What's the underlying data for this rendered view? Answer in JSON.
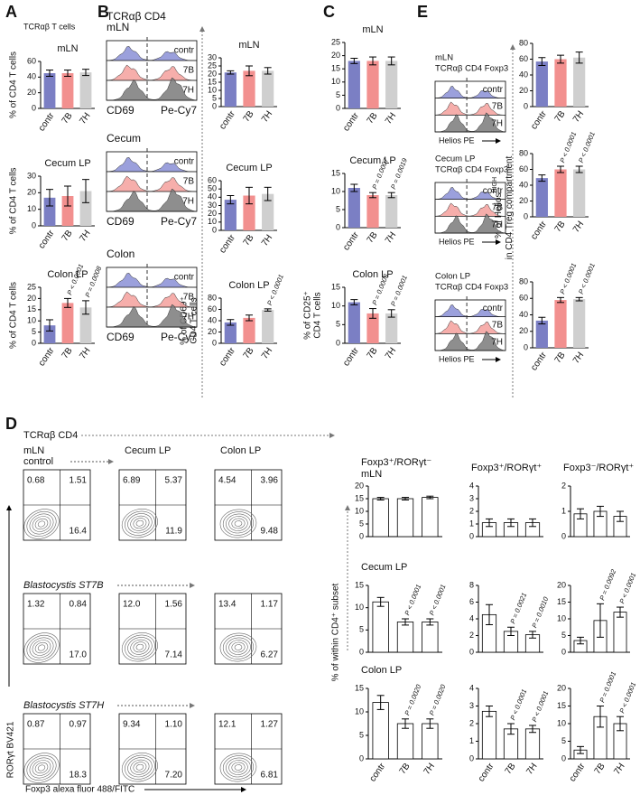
{
  "figure": {
    "panel_labels": [
      "A",
      "B",
      "C",
      "D",
      "E"
    ],
    "a_header": "TCRαβ T cells",
    "d_ylabel": "% of within CD4⁺ subset",
    "e_ylabel": {
      "text": "% of Helios",
      "sup": "HIGH",
      "line2": "in CD4 Treg compartment"
    }
  },
  "histograms": [
    {
      "title": [
        "TCRαβ CD4",
        "mLN"
      ],
      "groups": [
        "contr",
        "7B",
        "7H"
      ],
      "xlabel": [
        "CD69",
        "Pe-Cy7"
      ]
    },
    {
      "title": [
        "Cecum"
      ],
      "groups": [
        "contr",
        "7B",
        "7H"
      ],
      "xlabel": [
        "CD69",
        "Pe-Cy7"
      ]
    },
    {
      "title": [
        "Colon"
      ],
      "groups": [
        "contr",
        "7B",
        "7H"
      ],
      "xlabel": [
        "CD69",
        "Pe-Cy7"
      ]
    },
    {
      "title": [
        "mLN",
        "TCRαβ CD4 Foxp3"
      ],
      "groups": [
        "contr",
        "7B",
        "7H"
      ],
      "xlabel": [
        "Helios PE"
      ]
    },
    {
      "title": [
        "Cecum LP",
        "TCRαβ CD4 Foxp3"
      ],
      "groups": [
        "contr",
        "7B",
        "7H"
      ],
      "xlabel": [
        "Helios PE"
      ]
    },
    {
      "title": [
        "Colon LP",
        "TCRαβ CD4 Foxp3"
      ],
      "groups": [
        "contr",
        "7B",
        "7H"
      ],
      "xlabel": [
        "Helios PE"
      ]
    }
  ],
  "flow": {
    "header": "TCRαβ CD4",
    "tissue": "mLN",
    "columns": [
      "Cecum LP",
      "Colon LP"
    ],
    "rows": [
      "control",
      "Blastocystis ST7B",
      "Blastocystis ST7H"
    ],
    "ylabel": "RORγt BV421",
    "xlabel": "Foxp3 alexa fluor 488/FITC",
    "quadrants": [
      [
        [
          "0.68",
          "1.51",
          "16.4"
        ],
        [
          "6.89",
          "5.37",
          "11.9"
        ],
        [
          "4.54",
          "3.96",
          "9.48"
        ]
      ],
      [
        [
          "1.32",
          "0.84",
          "17.0"
        ],
        [
          "12.0",
          "1.56",
          "7.14"
        ],
        [
          "13.4",
          "1.17",
          "6.27"
        ]
      ],
      [
        [
          "0.87",
          "0.97",
          "18.3"
        ],
        [
          "9.34",
          "1.10",
          "7.20"
        ],
        [
          "12.1",
          "1.27",
          "6.81"
        ]
      ]
    ]
  },
  "chart_data": [
    {
      "type": "bar",
      "title": "mLN",
      "categories": [
        "contr",
        "7B",
        "7H"
      ],
      "values": [
        45,
        45,
        46
      ],
      "errors": [
        4,
        4,
        4
      ],
      "colors": [
        "#7b7fc4",
        "#f2908f",
        "#cfcfcf"
      ],
      "ylim": [
        0,
        60
      ],
      "yticks": [
        0,
        20,
        40,
        60
      ],
      "ylabel": [
        "% of CD4 T cells"
      ]
    },
    {
      "type": "bar",
      "title": "Cecum LP",
      "categories": [
        "contr",
        "7B",
        "7H"
      ],
      "values": [
        17,
        18,
        21
      ],
      "errors": [
        5,
        6,
        7
      ],
      "colors": [
        "#7b7fc4",
        "#f2908f",
        "#cfcfcf"
      ],
      "ylim": [
        0,
        30
      ],
      "yticks": [
        0,
        10,
        20,
        30
      ],
      "ylabel": [
        "% of CD4 T cells"
      ]
    },
    {
      "type": "bar",
      "title": "Colon LP",
      "categories": [
        "contr",
        "7B",
        "7H"
      ],
      "values": [
        8,
        18,
        16
      ],
      "errors": [
        2.5,
        2,
        3
      ],
      "colors": [
        "#7b7fc4",
        "#f2908f",
        "#cfcfcf"
      ],
      "ylim": [
        0,
        25
      ],
      "yticks": [
        0,
        5,
        10,
        15,
        20,
        25
      ],
      "ylabel": [
        "% of CD4 T cells"
      ],
      "annotations": [
        null,
        "P < 0.0001",
        "P = 0.0008"
      ]
    },
    {
      "type": "bar",
      "title": "mLN",
      "categories": [
        "contr",
        "7B",
        "7H"
      ],
      "values": [
        21,
        22,
        22
      ],
      "errors": [
        1,
        3,
        2
      ],
      "colors": [
        "#7b7fc4",
        "#f2908f",
        "#cfcfcf"
      ],
      "ylim": [
        0,
        30
      ],
      "yticks": [
        0,
        5,
        10,
        15,
        20,
        25,
        30
      ]
    },
    {
      "type": "bar",
      "title": "Cecum LP",
      "categories": [
        "contr",
        "7B",
        "7H"
      ],
      "values": [
        37,
        42,
        44
      ],
      "errors": [
        5,
        10,
        8
      ],
      "colors": [
        "#7b7fc4",
        "#f2908f",
        "#cfcfcf"
      ],
      "ylim": [
        0,
        60
      ],
      "yticks": [
        0,
        10,
        20,
        30,
        40,
        50,
        60
      ]
    },
    {
      "type": "bar",
      "title": "Colon LP",
      "categories": [
        "contr",
        "7B",
        "7H"
      ],
      "values": [
        37,
        45,
        59
      ],
      "errors": [
        5,
        5,
        2
      ],
      "colors": [
        "#7b7fc4",
        "#f2908f",
        "#cfcfcf"
      ],
      "ylim": [
        0,
        80
      ],
      "yticks": [
        0,
        20,
        40,
        60,
        80
      ],
      "ylabel": [
        "% of CD69⁺",
        "CD4 T cells"
      ],
      "annotations": [
        null,
        null,
        "P < 0.0001"
      ]
    },
    {
      "type": "bar",
      "title": "mLN",
      "categories": [
        "contr",
        "7B",
        "7H"
      ],
      "values": [
        18,
        18,
        18
      ],
      "errors": [
        1,
        1.5,
        1.5
      ],
      "colors": [
        "#7b7fc4",
        "#f2908f",
        "#cfcfcf"
      ],
      "ylim": [
        0,
        25
      ],
      "yticks": [
        0,
        5,
        10,
        15,
        20,
        25
      ]
    },
    {
      "type": "bar",
      "title": "Cecum LP",
      "categories": [
        "contr",
        "7B",
        "7H"
      ],
      "values": [
        11,
        9,
        9
      ],
      "errors": [
        1,
        0.7,
        0.7
      ],
      "colors": [
        "#7b7fc4",
        "#f2908f",
        "#cfcfcf"
      ],
      "ylim": [
        0,
        15
      ],
      "yticks": [
        0,
        5,
        10,
        15
      ],
      "annotations": [
        null,
        "P = 0.0007",
        "P = 0.0019"
      ]
    },
    {
      "type": "bar",
      "title": "Colon LP",
      "categories": [
        "contr",
        "7B",
        "7H"
      ],
      "values": [
        11,
        8,
        8
      ],
      "errors": [
        0.7,
        1.3,
        1
      ],
      "colors": [
        "#7b7fc4",
        "#f2908f",
        "#cfcfcf"
      ],
      "ylim": [
        0,
        15
      ],
      "yticks": [
        0,
        5,
        10,
        15
      ],
      "ylabel": [
        "% of CD25⁺",
        "CD4 T cells"
      ],
      "annotations": [
        null,
        "P = 0.0003",
        "P = 0.0001"
      ]
    },
    {
      "type": "bar",
      "categories": [
        "contr",
        "7B",
        "7H"
      ],
      "values": [
        57,
        60,
        62
      ],
      "errors": [
        5,
        5,
        7
      ],
      "colors": [
        "#7b7fc4",
        "#f2908f",
        "#cfcfcf"
      ],
      "ylim": [
        0,
        80
      ],
      "yticks": [
        0,
        20,
        40,
        60,
        80
      ]
    },
    {
      "type": "bar",
      "categories": [
        "contr",
        "7B",
        "7H"
      ],
      "values": [
        49,
        60,
        60
      ],
      "errors": [
        4,
        4,
        4
      ],
      "colors": [
        "#7b7fc4",
        "#f2908f",
        "#cfcfcf"
      ],
      "ylim": [
        0,
        80
      ],
      "yticks": [
        0,
        20,
        40,
        60,
        80
      ],
      "annotations": [
        null,
        "P < 0.0001",
        "P < 0.0001"
      ]
    },
    {
      "type": "bar",
      "categories": [
        "contr",
        "7B",
        "7H"
      ],
      "values": [
        33,
        58,
        59
      ],
      "errors": [
        4,
        3,
        2
      ],
      "colors": [
        "#7b7fc4",
        "#f2908f",
        "#cfcfcf"
      ],
      "ylim": [
        0,
        80
      ],
      "yticks": [
        0,
        20,
        40,
        60,
        80
      ],
      "annotations": [
        null,
        "P < 0.0001",
        "P < 0.0001"
      ]
    },
    {
      "type": "bar",
      "title": "Foxp3⁺/RORγt⁻",
      "subtitle": "mLN",
      "values": [
        15,
        15,
        15.5
      ],
      "errors": [
        0.5,
        0.5,
        0.5
      ],
      "color": "#ffffff",
      "ylim": [
        0,
        20
      ],
      "yticks": [
        0,
        5,
        10,
        15,
        20
      ]
    },
    {
      "type": "bar",
      "title": "Foxp3⁺/RORγt⁺",
      "values": [
        1.1,
        1.1,
        1.1
      ],
      "errors": [
        0.3,
        0.3,
        0.3
      ],
      "color": "#ffffff",
      "ylim": [
        0,
        4
      ],
      "yticks": [
        0,
        1,
        2,
        3,
        4
      ]
    },
    {
      "type": "bar",
      "title": "Foxp3⁻/RORγt⁺",
      "values": [
        0.9,
        1.0,
        0.8
      ],
      "errors": [
        0.2,
        0.2,
        0.2
      ],
      "color": "#ffffff",
      "ylim": [
        0,
        2
      ],
      "yticks": [
        0,
        1,
        2
      ]
    },
    {
      "type": "bar",
      "title": "Cecum LP",
      "values": [
        11.3,
        6.8,
        6.8
      ],
      "errors": [
        1,
        0.7,
        0.7
      ],
      "color": "#ffffff",
      "ylim": [
        0,
        15
      ],
      "yticks": [
        0,
        5,
        10,
        15
      ],
      "annotations": [
        null,
        "P < 0.0001",
        "P < 0.0001"
      ]
    },
    {
      "type": "bar",
      "values": [
        4.5,
        2.5,
        2.1
      ],
      "errors": [
        1.2,
        0.5,
        0.4
      ],
      "color": "#ffffff",
      "ylim": [
        0,
        8
      ],
      "yticks": [
        0,
        2,
        4,
        6,
        8
      ],
      "annotations": [
        null,
        "P = 0.0021",
        "P = 0.0010"
      ]
    },
    {
      "type": "bar",
      "values": [
        3.5,
        9.5,
        12
      ],
      "errors": [
        1,
        5,
        1.5
      ],
      "color": "#ffffff",
      "ylim": [
        0,
        20
      ],
      "yticks": [
        0,
        5,
        10,
        15,
        20
      ],
      "annotations": [
        null,
        "P = 0.0092",
        "P < 0.0001"
      ]
    },
    {
      "type": "bar",
      "title": "Colon LP",
      "categories": [
        "contr",
        "7B",
        "7H"
      ],
      "values": [
        12,
        7.5,
        7.5
      ],
      "errors": [
        1.5,
        1,
        1
      ],
      "color": "#ffffff",
      "ylim": [
        0,
        15
      ],
      "yticks": [
        0,
        5,
        10,
        15
      ],
      "annotations": [
        null,
        "P = 0.0020",
        "P = 0.0020"
      ]
    },
    {
      "type": "bar",
      "categories": [
        "contr",
        "7B",
        "7H"
      ],
      "values": [
        2.7,
        1.7,
        1.7
      ],
      "errors": [
        0.3,
        0.3,
        0.2
      ],
      "color": "#ffffff",
      "ylim": [
        0,
        4
      ],
      "yticks": [
        0,
        1,
        2,
        3,
        4
      ],
      "annotations": [
        null,
        "P < 0.0001",
        "P < 0.0001"
      ]
    },
    {
      "type": "bar",
      "categories": [
        "contr",
        "7B",
        "7H"
      ],
      "values": [
        2.5,
        12,
        10
      ],
      "errors": [
        1,
        3,
        2
      ],
      "color": "#ffffff",
      "ylim": [
        0,
        20
      ],
      "yticks": [
        0,
        5,
        10,
        15,
        20
      ],
      "annotations": [
        null,
        "P = 0.0001",
        "P < 0.0001"
      ]
    }
  ]
}
